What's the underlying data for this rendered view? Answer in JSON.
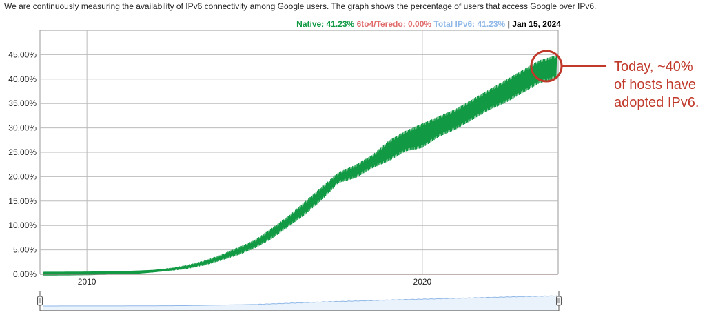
{
  "intro_text": "We are continuously measuring the availability of IPv6 connectivity among Google users. The graph shows the percentage of users that access Google over IPv6.",
  "legend": {
    "native": "Native: 41.23%",
    "teredo": "6to4/Teredo: 0.00%",
    "total": "Total IPv6: 41.23%",
    "separator": "|",
    "date": "Jan 15, 2024"
  },
  "annotation": {
    "line1": "Today, ~40%",
    "line2": "of hosts have",
    "line3": "adopted IPv6."
  },
  "colors": {
    "native": "#119943",
    "teredo": "#e06c6c",
    "total": "#8fb8e8",
    "annotation": "#c0392b"
  },
  "chart_data": {
    "type": "area",
    "xlim": [
      2008.6,
      2024.05
    ],
    "ylim": [
      0,
      50
    ],
    "x_ticks": [
      {
        "value": 2010,
        "label": "2010"
      },
      {
        "value": 2020,
        "label": "2020"
      }
    ],
    "y_ticks": [
      {
        "value": 0,
        "label": "0.00%"
      },
      {
        "value": 5,
        "label": "5.00%"
      },
      {
        "value": 10,
        "label": "10.00%"
      },
      {
        "value": 15,
        "label": "15.00%"
      },
      {
        "value": 20,
        "label": "20.00%"
      },
      {
        "value": 25,
        "label": "25.00%"
      },
      {
        "value": 30,
        "label": "30.00%"
      },
      {
        "value": 35,
        "label": "35.00%"
      },
      {
        "value": 40,
        "label": "40.00%"
      },
      {
        "value": 45,
        "label": "45.00%"
      }
    ],
    "grid": true,
    "series": [
      {
        "name": "Native",
        "color": "#119943",
        "x": [
          2008.7,
          2009.5,
          2010.0,
          2010.5,
          2011.0,
          2011.5,
          2012.0,
          2012.5,
          2013.0,
          2013.5,
          2014.0,
          2014.5,
          2015.0,
          2015.5,
          2016.0,
          2016.5,
          2017.0,
          2017.5,
          2018.0,
          2018.5,
          2019.0,
          2019.5,
          2020.0,
          2020.5,
          2021.0,
          2021.5,
          2022.0,
          2022.5,
          2023.0,
          2023.5,
          2024.0
        ],
        "low": [
          0.1,
          0.12,
          0.15,
          0.2,
          0.25,
          0.35,
          0.5,
          0.8,
          1.2,
          1.9,
          2.9,
          4.0,
          5.4,
          7.3,
          9.8,
          12.3,
          15.3,
          18.8,
          19.8,
          21.8,
          23.3,
          25.3,
          26.0,
          28.3,
          29.8,
          31.8,
          33.8,
          35.3,
          37.3,
          39.3,
          40.3
        ],
        "high": [
          0.15,
          0.18,
          0.22,
          0.3,
          0.4,
          0.5,
          0.8,
          1.2,
          1.8,
          2.7,
          3.9,
          5.4,
          6.9,
          9.3,
          11.8,
          14.8,
          17.8,
          20.8,
          22.3,
          24.3,
          27.3,
          29.3,
          30.8,
          32.3,
          33.8,
          35.8,
          37.8,
          39.8,
          41.8,
          43.8,
          44.8
        ]
      },
      {
        "name": "6to4/Teredo",
        "color": "#e06c6c",
        "x": [
          2008.7,
          2024.0
        ],
        "values": [
          0.0,
          0.0
        ]
      }
    ],
    "range_selector": {
      "x": [
        2008.7,
        2011.0,
        2013.0,
        2015.0,
        2017.0,
        2019.0,
        2021.0,
        2023.0,
        2024.0
      ],
      "values": [
        0.1,
        0.3,
        1.5,
        6.0,
        16.0,
        24.0,
        31.0,
        38.0,
        41.0
      ]
    }
  }
}
